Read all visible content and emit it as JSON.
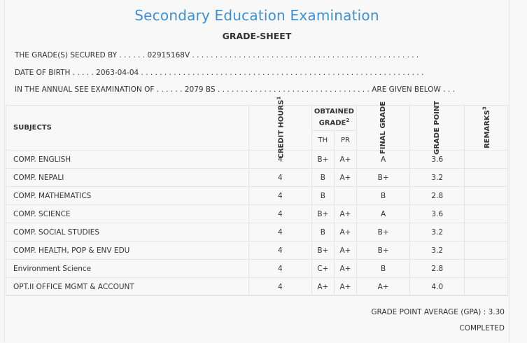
{
  "header": {
    "title": "Secondary Education Examination",
    "subtitle": "GRADE-SHEET"
  },
  "info": {
    "secured_prefix": "THE GRADE(S) SECURED BY . . . . . . ",
    "symbol_no": "02915168V",
    "secured_suffix": " . . . . . . . . . . . . . . . . . . . . . . . . . . . . . . . . . . . . . . . . . . . . . . . . .",
    "dob_prefix": "DATE OF BIRTH . . . . . ",
    "dob": "2063-04-04",
    "dob_suffix": " . . . . . . . . . . . . . . . . . . . . . . . . . . . . . . . . . . . . . . . . . . . . . . . . . . . . . . . . . . . . .",
    "exam_prefix": "IN THE ANNUAL SEE EXAMINATION OF . . . . . . ",
    "exam_year": "2079 BS",
    "exam_suffix": " . . . . . . . . . . . . . . . . . . . . . . . . . . . . . . . . . ARE GIVEN BELOW . . ."
  },
  "table": {
    "headers": {
      "subjects": "SUBJECTS",
      "credit_hours": "CREDIT HOURS",
      "credit_sup": "1",
      "obtained_grade": "OBTAINED GRADE",
      "obtained_sup": "2",
      "th": "TH",
      "pr": "PR",
      "final_grade": "FINAL GRADE",
      "grade_point": "GRADE POINT",
      "remarks": "REMARKS",
      "remarks_sup": "3"
    },
    "rows": [
      {
        "subject": "COMP. ENGLISH",
        "credit": "4",
        "th": "B+",
        "pr": "A+",
        "final": "A",
        "gp": "3.6"
      },
      {
        "subject": "COMP. NEPALI",
        "credit": "4",
        "th": "B",
        "pr": "A+",
        "final": "B+",
        "gp": "3.2"
      },
      {
        "subject": "COMP. MATHEMATICS",
        "credit": "4",
        "th": "B",
        "pr": "",
        "final": "B",
        "gp": "2.8"
      },
      {
        "subject": "COMP. SCIENCE",
        "credit": "4",
        "th": "B+",
        "pr": "A+",
        "final": "A",
        "gp": "3.6"
      },
      {
        "subject": "COMP. SOCIAL STUDIES",
        "credit": "4",
        "th": "B",
        "pr": "A+",
        "final": "B+",
        "gp": "3.2"
      },
      {
        "subject": "COMP. HEALTH, POP & ENV EDU",
        "credit": "4",
        "th": "B+",
        "pr": "A+",
        "final": "B+",
        "gp": "3.2"
      },
      {
        "subject": "Environment Science",
        "credit": "4",
        "th": "C+",
        "pr": "A+",
        "final": "B",
        "gp": "2.8"
      },
      {
        "subject": "OPT.II OFFICE MGMT & ACCOUNT",
        "credit": "4",
        "th": "A+",
        "pr": "A+",
        "final": "A+",
        "gp": "4.0"
      }
    ]
  },
  "footer": {
    "gpa": "GRADE POINT AVERAGE (GPA) : 3.30",
    "status": "COMPLETED"
  }
}
